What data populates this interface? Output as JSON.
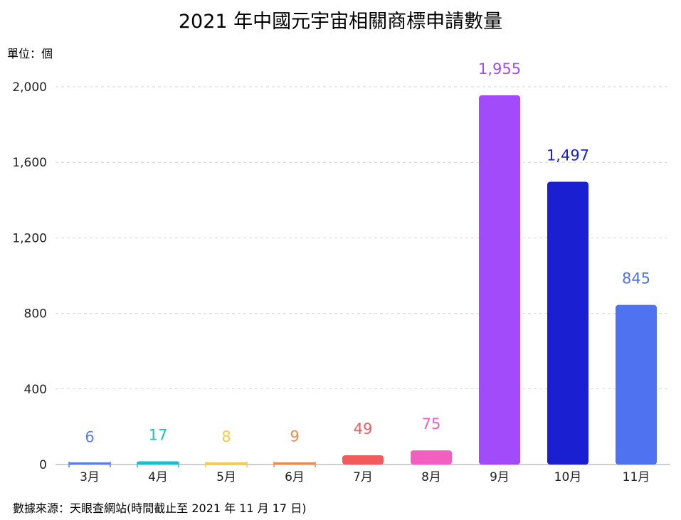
{
  "title": "2021 年中國元宇宙相關商標申請數量",
  "unit_label": "單位：個",
  "source": "數據來源：天眼查網站(時間截止至 2021 年 11 月 17 日)",
  "chart_data": {
    "type": "bar",
    "title": "2021 年中國元宇宙相關商標申請數量",
    "xlabel": "",
    "ylabel": "單位：個",
    "categories": [
      "3月",
      "4月",
      "5月",
      "6月",
      "7月",
      "8月",
      "9月",
      "10月",
      "11月"
    ],
    "values": [
      6,
      17,
      8,
      9,
      49,
      75,
      1955,
      1497,
      845
    ],
    "value_labels": [
      "6",
      "17",
      "8",
      "9",
      "49",
      "75",
      "1,955",
      "1,497",
      "845"
    ],
    "colors": [
      "#5b7cf0",
      "#14c2cf",
      "#f7c948",
      "#f08a4b",
      "#f15b5b",
      "#f25fc0",
      "#a24bfa",
      "#1a1fd1",
      "#4f72f0"
    ],
    "ylim": [
      0,
      2000
    ],
    "yticks": [
      0,
      400,
      800,
      1200,
      1600,
      2000
    ],
    "ytick_labels": [
      "0",
      "400",
      "800",
      "1,200",
      "1,600",
      "2,000"
    ],
    "grid": true,
    "legend": "none"
  }
}
